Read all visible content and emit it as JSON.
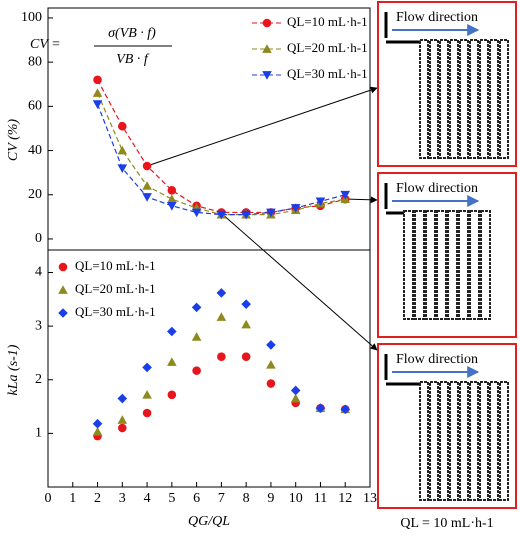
{
  "chart_data": [
    {
      "type": "line",
      "y_label": "CV (%)",
      "formula": {
        "lhs": "CV =",
        "numerator": "σ(VB · f)",
        "denominator": "VB · f"
      },
      "x": [
        2,
        3,
        4,
        5,
        6,
        7,
        8,
        9,
        10,
        11,
        12
      ],
      "series": [
        {
          "name": "QL=10 mL·h-1",
          "color": "#e8161c",
          "marker": "circle",
          "values": [
            72,
            51,
            33,
            22,
            15,
            12,
            12,
            12,
            14,
            15,
            18
          ]
        },
        {
          "name": "QL=20 mL·h-1",
          "color": "#8f8a1e",
          "marker": "triangle-up",
          "values": [
            66,
            40,
            24,
            18,
            14,
            11,
            11,
            11,
            13,
            16,
            18
          ]
        },
        {
          "name": "QL=30 mL·h-1",
          "color": "#1a3ee8",
          "marker": "triangle-down",
          "values": [
            61,
            32,
            19,
            15,
            12,
            11,
            11,
            12,
            14,
            17,
            20
          ]
        }
      ],
      "xlim": [
        0,
        13
      ],
      "ylim": [
        -5,
        104.5
      ],
      "yticks": [
        0,
        20,
        40,
        60,
        80,
        100
      ],
      "legend": "upper-right"
    },
    {
      "type": "scatter",
      "y_label": "kLa (s-1)",
      "x_label": "QG/QL",
      "x": [
        2,
        3,
        4,
        5,
        6,
        7,
        8,
        9,
        10,
        11,
        12
      ],
      "series": [
        {
          "name": "QL=10 mL·h-1",
          "color": "#e8161c",
          "marker": "circle",
          "values": [
            0.95,
            1.1,
            1.38,
            1.72,
            2.17,
            2.43,
            2.43,
            1.93,
            1.57,
            1.47,
            1.45
          ]
        },
        {
          "name": "QL=20 mL·h-1",
          "color": "#8f8a1e",
          "marker": "triangle-up",
          "values": [
            1.03,
            1.25,
            1.72,
            2.33,
            2.8,
            3.17,
            3.03,
            2.28,
            1.65,
            1.47,
            1.45
          ]
        },
        {
          "name": "QL=30 mL·h-1",
          "color": "#1a3ee8",
          "marker": "diamond",
          "values": [
            1.18,
            1.65,
            2.23,
            2.9,
            3.35,
            3.62,
            3.41,
            2.65,
            1.8,
            1.47,
            1.45
          ]
        }
      ],
      "xlim": [
        0,
        13
      ],
      "xticks": [
        0,
        1,
        2,
        3,
        4,
        5,
        6,
        7,
        8,
        9,
        10,
        11,
        12,
        13
      ],
      "ylim": [
        0,
        4.42
      ],
      "yticks": [
        1,
        2,
        3,
        4
      ],
      "legend": "upper-left"
    }
  ],
  "panels": [
    "Flow direction",
    "Flow direction",
    "Flow direction"
  ],
  "caption": "QL = 10 mL·h-1"
}
